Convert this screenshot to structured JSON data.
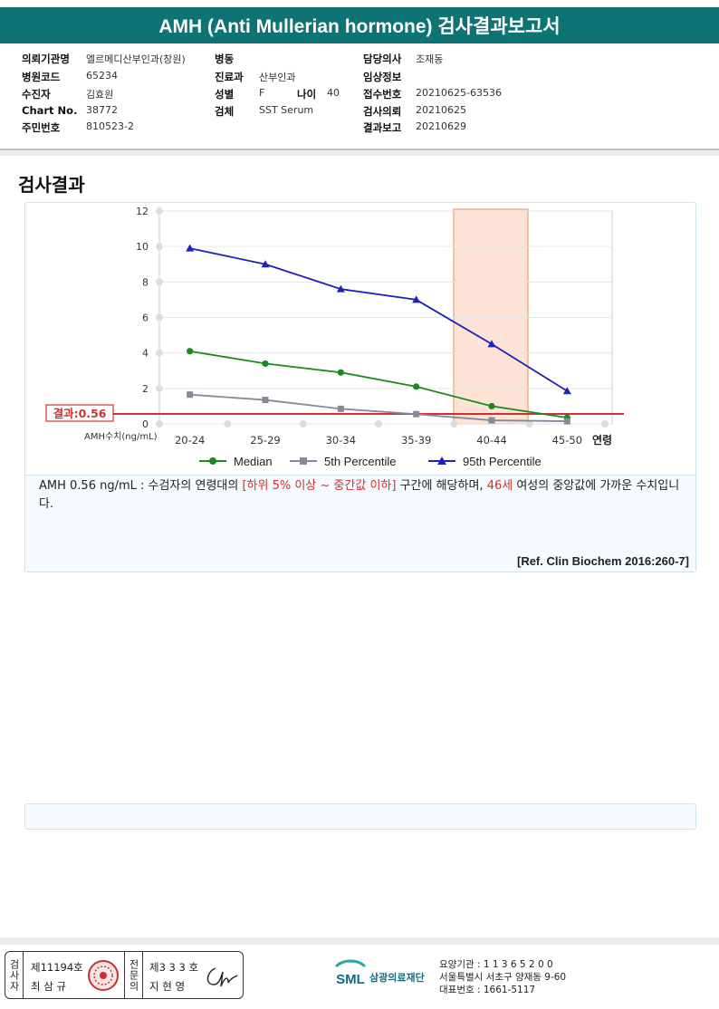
{
  "header": {
    "title": "AMH (Anti Mullerian hormone) 검사결과보고서"
  },
  "info": {
    "col1": [
      {
        "label": "의뢰기관명",
        "value": "엘르메디산부인과(창원)"
      },
      {
        "label": "병원코드",
        "value": "65234"
      },
      {
        "label": "수진자",
        "value": "김효원"
      },
      {
        "label": "Chart No.",
        "value": "38772"
      },
      {
        "label": "주민번호",
        "value": "810523-2"
      }
    ],
    "col2": [
      {
        "label": "병동",
        "value": ""
      },
      {
        "label": "진료과",
        "value": "산부인과"
      },
      {
        "label": "성별",
        "value": "F"
      },
      {
        "label": "검체",
        "value": "SST Serum"
      }
    ],
    "age": {
      "label": "나이",
      "value": "40"
    },
    "col3": [
      {
        "label": "담당의사",
        "value": "조재동"
      },
      {
        "label": "임상정보",
        "value": ""
      },
      {
        "label": "접수번호",
        "value": "20210625-63536"
      },
      {
        "label": "검사의뢰",
        "value": "20210625"
      },
      {
        "label": "결과보고",
        "value": "20210629"
      }
    ]
  },
  "section": {
    "title": "검사결과"
  },
  "chart_data": {
    "type": "line",
    "categories": [
      "20-24",
      "25-29",
      "30-34",
      "35-39",
      "40-44",
      "45-50"
    ],
    "series": [
      {
        "name": "Median",
        "values": [
          4.1,
          3.4,
          2.9,
          2.1,
          1.0,
          0.35
        ],
        "color": "#1a8a1a",
        "marker": "circle"
      },
      {
        "name": "5th Percentile",
        "values": [
          1.65,
          1.35,
          0.85,
          0.55,
          0.2,
          0.15
        ],
        "color": "#888899",
        "marker": "square"
      },
      {
        "name": "95th Percentile",
        "values": [
          9.9,
          9.0,
          7.6,
          7.0,
          4.5,
          1.85
        ],
        "color": "#1f22b8",
        "marker": "triangle"
      }
    ],
    "yticks": [
      0,
      2,
      4,
      6,
      8,
      10,
      12
    ],
    "ylim": [
      0,
      12
    ],
    "xlabel": "연령",
    "ylabel": "AMH수치(ng/mL)",
    "result_value": 0.56,
    "result_label": "결과:0.56",
    "highlight_category": "40-44",
    "colors": {
      "result_line": "#d0312d",
      "highlight_fill": "#fde3d6",
      "highlight_stroke": "#e8a070"
    }
  },
  "description": {
    "part1": "AMH  0.56 ng/mL : 수검자의 연령대의 ",
    "part2": "[하위 5% 이상 ~ 중간값 이하]",
    "part3": "  구간에 해당하며, ",
    "part4": "46세",
    "part5": " 여성의 중앙값에 가까운 수치입니다."
  },
  "reference": "[Ref. Clin Biochem 2016:260-7]",
  "footer": {
    "tester_label": "검사자",
    "tester_no": "제11194호",
    "tester_name": "최 삼 규",
    "confirmer_label": "전문의",
    "confirmer_no": "제3 3 3 호",
    "confirmer_name": "지 현 영",
    "org_logo": "SML",
    "org_name": "삼광의료재단",
    "lab_line1": "요양기관 : 1 1 3 6 5 2 0 0",
    "lab_line2": "서울특별시 서초구 양재동 9-60",
    "lab_line3": "대표번호 : 1661-5117"
  }
}
